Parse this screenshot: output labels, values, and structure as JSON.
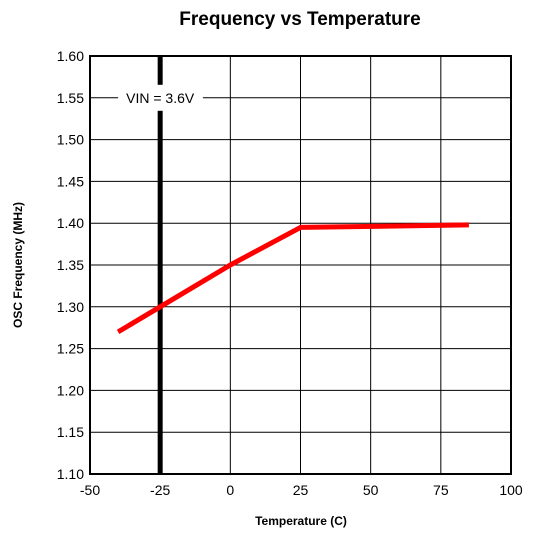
{
  "chart_data": {
    "type": "line",
    "title": "Frequency vs Temperature",
    "xlabel": "Temperature (C)",
    "ylabel": "OSC Frequency (MHz)",
    "xlim": [
      -50,
      100
    ],
    "ylim": [
      1.1,
      1.6
    ],
    "x_ticks": [
      -50,
      -25,
      0,
      25,
      50,
      75,
      100
    ],
    "x_tick_labels": [
      "-50",
      "-25",
      "0",
      "25",
      "50",
      "75",
      "100"
    ],
    "y_ticks": [
      1.1,
      1.15,
      1.2,
      1.25,
      1.3,
      1.35,
      1.4,
      1.45,
      1.5,
      1.55,
      1.6
    ],
    "y_tick_labels": [
      "1.10",
      "1.15",
      "1.20",
      "1.25",
      "1.30",
      "1.35",
      "1.40",
      "1.45",
      "1.50",
      "1.55",
      "1.60"
    ],
    "grid": true,
    "series": [
      {
        "color": "#ff0000",
        "x": [
          -40,
          -25,
          0,
          25,
          85
        ],
        "y": [
          1.27,
          1.3,
          1.35,
          1.395,
          1.398
        ]
      }
    ],
    "annotation": {
      "text": "VIN = 3.6V",
      "x": -25,
      "y": 1.55
    }
  }
}
